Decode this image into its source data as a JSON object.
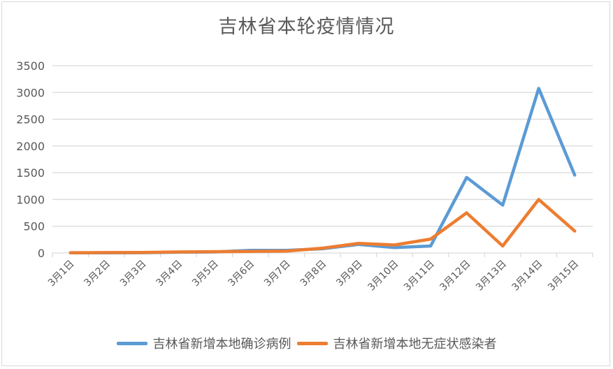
{
  "chart_data": {
    "type": "line",
    "title": "吉林省本轮疫情情况",
    "xlabel": "",
    "ylabel": "",
    "ylim": [
      0,
      3500
    ],
    "yticks": [
      0,
      500,
      1000,
      1500,
      2000,
      2500,
      3000,
      3500
    ],
    "grid": true,
    "legend_position": "bottom",
    "categories": [
      "3月1日",
      "3月2日",
      "3月3日",
      "3月4日",
      "3月5日",
      "3月6日",
      "3月7日",
      "3月8日",
      "3月9日",
      "3月10日",
      "3月11日",
      "3月12日",
      "3月13日",
      "3月14日",
      "3月15日"
    ],
    "series": [
      {
        "name": "吉林省新增本地确诊病例",
        "color": "#5b9bd5",
        "values": [
          2,
          3,
          5,
          15,
          20,
          50,
          50,
          80,
          160,
          100,
          130,
          1412,
          895,
          3076,
          1456
        ]
      },
      {
        "name": "吉林省新增本地无症状感染者",
        "color": "#ed7d31",
        "values": [
          5,
          8,
          10,
          20,
          25,
          30,
          35,
          90,
          180,
          150,
          260,
          750,
          130,
          1000,
          410
        ]
      }
    ]
  }
}
